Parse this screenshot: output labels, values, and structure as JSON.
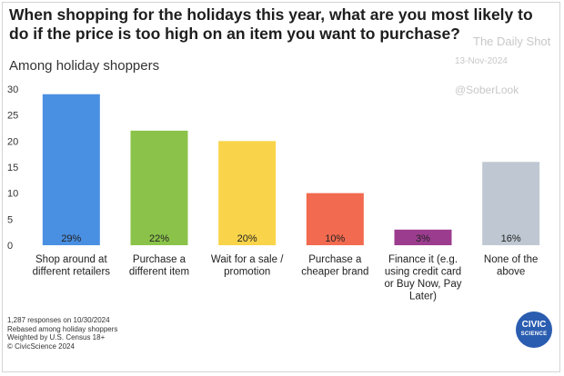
{
  "title": "When shopping for the holidays this year, what are you most likely to do if the price is too high on an item you want to purchase?",
  "subtitle": "Among holiday shoppers",
  "watermarks": [
    "The Daily Shot",
    "13-Nov-2024",
    "@SoberLook"
  ],
  "footnotes": [
    "1,287 responses on 10/30/2024",
    "Rebased among holiday shoppers",
    "Weighted by U.S. Census 18+",
    "© CivicScience 2024"
  ],
  "logo": {
    "line1": "CIVIC",
    "line2": "SCIENCE"
  },
  "chart_data": {
    "type": "bar",
    "title": "When shopping for the holidays this year, what are you most likely to do if the price is too high on an item you want to purchase?",
    "subtitle": "Among holiday shoppers",
    "xlabel": "",
    "ylabel": "",
    "ylim": [
      0,
      30
    ],
    "yticks": [
      0,
      5,
      10,
      15,
      20,
      25,
      30
    ],
    "grid": false,
    "categories": [
      [
        "Shop around at",
        "different retailers"
      ],
      [
        "Purchase a",
        "different item"
      ],
      [
        "Wait for a sale /",
        "promotion"
      ],
      [
        "Purchase a",
        "cheaper brand"
      ],
      [
        "Finance it (e.g.",
        "using credit card",
        "or Buy Now, Pay",
        "Later)"
      ],
      [
        "None of the",
        "above"
      ]
    ],
    "values": [
      29,
      22,
      20,
      10,
      3,
      16
    ],
    "data_labels": [
      "29%",
      "22%",
      "20%",
      "10%",
      "3%",
      "16%"
    ],
    "colors": [
      "#4a90e2",
      "#8bc34a",
      "#f9d44a",
      "#f26a4f",
      "#9c3c8f",
      "#bfc8d2"
    ]
  }
}
